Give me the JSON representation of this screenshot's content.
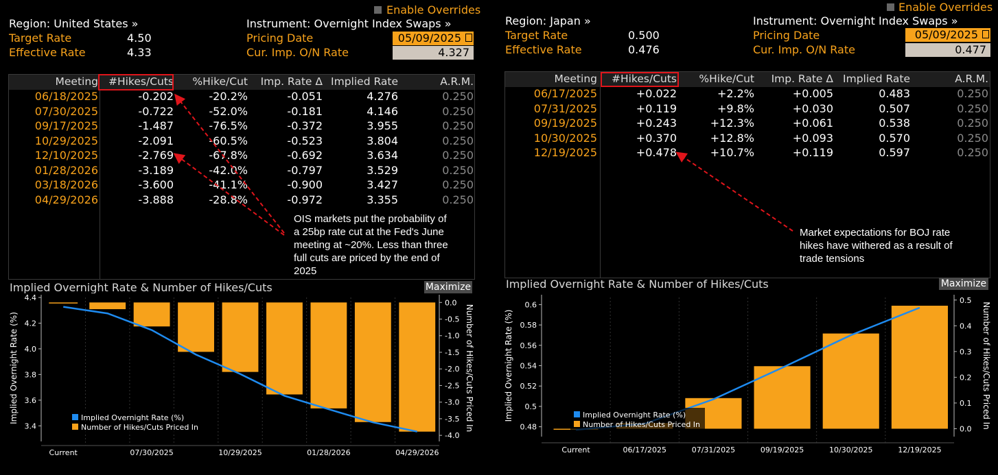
{
  "common": {
    "enable_overrides": "Enable Overrides",
    "chart_title": "Implied Overnight Rate & Number of Hikes/Cuts",
    "maximize": "Maximize",
    "col_headers": [
      "Meeting",
      "#Hikes/Cuts",
      "%Hike/Cut",
      "Imp. Rate Δ",
      "Implied Rate",
      "A.R.M."
    ],
    "legend_rate": "Implied Overnight Rate (%)",
    "legend_hikes": "Number of Hikes/Cuts Priced In",
    "y_left_label": "Implied Overnight Rate (%)",
    "y_right_label": "Number of Hikes/Cuts Priced In",
    "colors": {
      "orange": "#f7a21b",
      "blue": "#1e8bf0",
      "red": "#e0151b"
    }
  },
  "us": {
    "region": "Region: United States »",
    "instrument": "Instrument: Overnight Index Swaps »",
    "target_label": "Target Rate",
    "target_value": "4.50",
    "effective_label": "Effective Rate",
    "effective_value": "4.33",
    "pricing_label": "Pricing Date",
    "pricing_value": "05/09/2025",
    "onrate_label": "Cur. Imp. O/N Rate",
    "onrate_value": "4.327",
    "rows": [
      {
        "meeting": "06/18/2025",
        "hikes": "-0.202",
        "pct": "-20.2%",
        "delta": "-0.051",
        "implied": "4.276",
        "arm": "0.250"
      },
      {
        "meeting": "07/30/2025",
        "hikes": "-0.722",
        "pct": "-52.0%",
        "delta": "-0.181",
        "implied": "4.146",
        "arm": "0.250"
      },
      {
        "meeting": "09/17/2025",
        "hikes": "-1.487",
        "pct": "-76.5%",
        "delta": "-0.372",
        "implied": "3.955",
        "arm": "0.250"
      },
      {
        "meeting": "10/29/2025",
        "hikes": "-2.091",
        "pct": "-60.5%",
        "delta": "-0.523",
        "implied": "3.804",
        "arm": "0.250"
      },
      {
        "meeting": "12/10/2025",
        "hikes": "-2.769",
        "pct": "-67.8%",
        "delta": "-0.692",
        "implied": "3.634",
        "arm": "0.250"
      },
      {
        "meeting": "01/28/2026",
        "hikes": "-3.189",
        "pct": "-42.0%",
        "delta": "-0.797",
        "implied": "3.529",
        "arm": "0.250"
      },
      {
        "meeting": "03/18/2026",
        "hikes": "-3.600",
        "pct": "-41.1%",
        "delta": "-0.900",
        "implied": "3.427",
        "arm": "0.250"
      },
      {
        "meeting": "04/29/2026",
        "hikes": "-3.888",
        "pct": "-28.8%",
        "delta": "-0.972",
        "implied": "3.355",
        "arm": "0.250"
      }
    ],
    "annotation": "OIS markets put the probability of a 25bp rate cut at the Fed's June meeting at ~20%. Less than three full cuts are priced by the end of 2025"
  },
  "jp": {
    "region": "Region: Japan »",
    "instrument": "Instrument: Overnight Index Swaps »",
    "target_label": "Target Rate",
    "target_value": "0.500",
    "effective_label": "Effective Rate",
    "effective_value": "0.476",
    "pricing_label": "Pricing Date",
    "pricing_value": "05/09/2025",
    "onrate_label": "Cur. Imp. O/N Rate",
    "onrate_value": "0.477",
    "rows": [
      {
        "meeting": "06/17/2025",
        "hikes": "+0.022",
        "pct": "+2.2%",
        "delta": "+0.005",
        "implied": "0.483",
        "arm": "0.250"
      },
      {
        "meeting": "07/31/2025",
        "hikes": "+0.119",
        "pct": "+9.8%",
        "delta": "+0.030",
        "implied": "0.507",
        "arm": "0.250"
      },
      {
        "meeting": "09/19/2025",
        "hikes": "+0.243",
        "pct": "+12.3%",
        "delta": "+0.061",
        "implied": "0.538",
        "arm": "0.250"
      },
      {
        "meeting": "10/30/2025",
        "hikes": "+0.370",
        "pct": "+12.8%",
        "delta": "+0.093",
        "implied": "0.570",
        "arm": "0.250"
      },
      {
        "meeting": "12/19/2025",
        "hikes": "+0.478",
        "pct": "+10.7%",
        "delta": "+0.119",
        "implied": "0.597",
        "arm": "0.250"
      }
    ],
    "annotation": "Market expectations for BOJ rate hikes have withered as a result of trade tensions"
  },
  "chart_data": [
    {
      "type": "bar",
      "title": "Implied Overnight Rate & Number of Hikes/Cuts",
      "categories": [
        "Current",
        "06/18/2025",
        "07/30/2025",
        "09/17/2025",
        "10/29/2025",
        "12/10/2025",
        "01/28/2026",
        "03/18/2026",
        "04/29/2026"
      ],
      "tick_labels": [
        "Current",
        "07/30/2025",
        "10/29/2025",
        "01/28/2026",
        "04/29/2026"
      ],
      "series": [
        {
          "name": "Implied Overnight Rate (%)",
          "type": "line",
          "axis": "left",
          "values": [
            4.327,
            4.276,
            4.146,
            3.955,
            3.804,
            3.634,
            3.529,
            3.427,
            3.355
          ]
        },
        {
          "name": "Number of Hikes/Cuts Priced In",
          "type": "bar",
          "axis": "right",
          "values": [
            0,
            -0.202,
            -0.722,
            -1.487,
            -2.091,
            -2.769,
            -3.189,
            -3.6,
            -3.888
          ]
        }
      ],
      "ylabel": "Implied Overnight Rate (%)",
      "y2label": "Number of Hikes/Cuts Priced In",
      "ylim": [
        3.3,
        4.4
      ],
      "yticks": [
        "4.4",
        "4.2",
        "4.0",
        "3.8",
        "3.6",
        "3.4"
      ],
      "y2lim": [
        -4.1,
        0.15
      ],
      "y2ticks": [
        "0.0",
        "-0.5",
        "-1.0",
        "-1.5",
        "-2.0",
        "-2.5",
        "-3.0",
        "-3.5",
        "-4.0"
      ],
      "legend": "bottom-left"
    },
    {
      "type": "bar",
      "title": "Implied Overnight Rate & Number of Hikes/Cuts",
      "categories": [
        "Current",
        "06/17/2025",
        "07/31/2025",
        "09/19/2025",
        "10/30/2025",
        "12/19/2025"
      ],
      "tick_labels": [
        "Current",
        "06/17/2025",
        "07/31/2025",
        "09/19/2025",
        "10/30/2025",
        "12/19/2025"
      ],
      "series": [
        {
          "name": "Implied Overnight Rate (%)",
          "type": "line",
          "axis": "left",
          "values": [
            0.477,
            0.483,
            0.507,
            0.538,
            0.57,
            0.597
          ]
        },
        {
          "name": "Number of Hikes/Cuts Priced In",
          "type": "bar",
          "axis": "right",
          "values": [
            0,
            0.022,
            0.119,
            0.243,
            0.37,
            0.478
          ]
        }
      ],
      "ylabel": "Implied Overnight Rate (%)",
      "y2label": "Number of Hikes/Cuts Priced In",
      "ylim": [
        0.473,
        0.607
      ],
      "yticks": [
        "0.6",
        "0.58",
        "0.56",
        "0.54",
        "0.52",
        "0.5",
        "0.48"
      ],
      "y2lim": [
        -0.02,
        0.51
      ],
      "y2ticks": [
        "0.5",
        "0.4",
        "0.3",
        "0.2",
        "0.1",
        "0.0"
      ],
      "legend": "bottom-left"
    }
  ]
}
